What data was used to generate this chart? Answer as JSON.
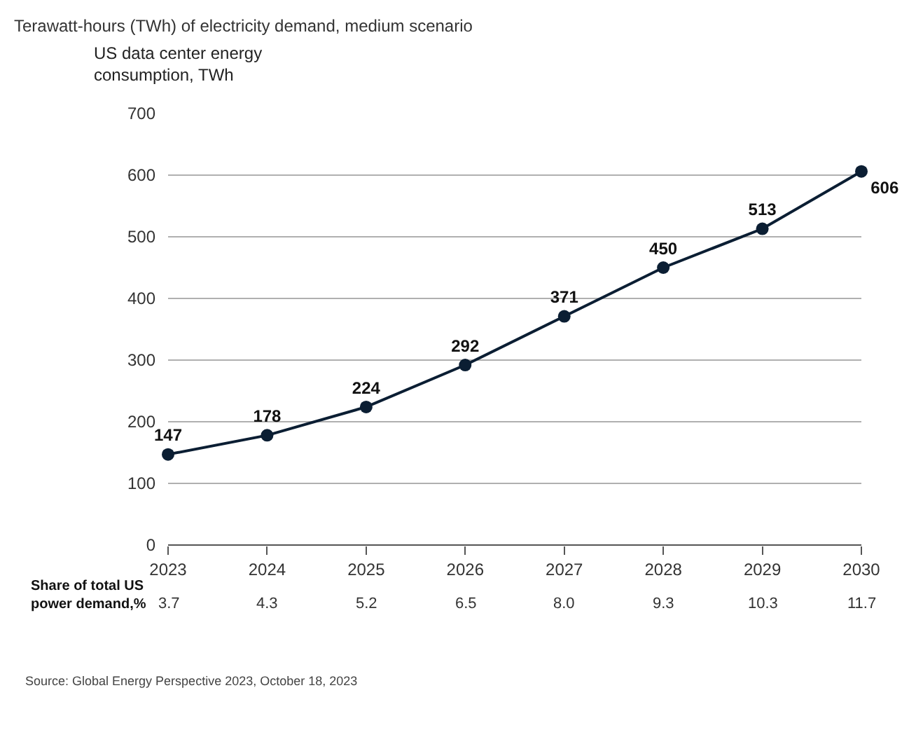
{
  "chart_data": {
    "type": "line",
    "title": "Terawatt-hours (TWh) of electricity demand, medium scenario",
    "ylabel": "US data center energy consumption, TWh",
    "categories": [
      "2023",
      "2024",
      "2025",
      "2026",
      "2027",
      "2028",
      "2029",
      "2030"
    ],
    "series": [
      {
        "color": "#0b1e33",
        "values": [
          147,
          178,
          224,
          292,
          371,
          450,
          513,
          606
        ]
      }
    ],
    "ylim": [
      0,
      700
    ],
    "yticks": [
      0,
      100,
      200,
      300,
      400,
      500,
      600,
      700
    ],
    "grid": "y",
    "legend": false,
    "marker": "circle",
    "line_style": "solid",
    "data_labels": true,
    "annotations": [
      "Share of total US power demand,%",
      "3.7",
      "4.3",
      "5.2",
      "6.5",
      "8.0",
      "9.3",
      "10.3",
      "11.7",
      "Source: Global Energy Perspective 2023, October 18, 2023"
    ]
  }
}
